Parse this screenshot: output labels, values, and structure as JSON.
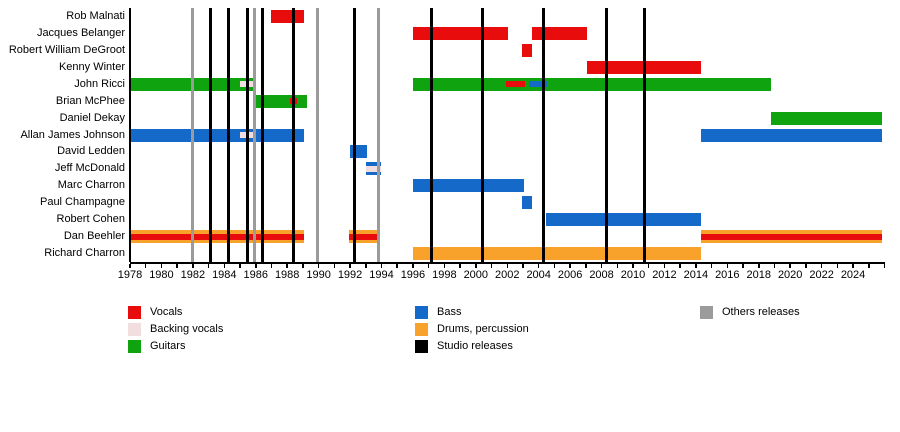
{
  "colors": {
    "vocals": "#e80c0c",
    "backing_vocals": "#f2dede",
    "guitars": "#10a310",
    "bass": "#1569c9",
    "drums": "#f9a22b",
    "studio_release_line": "#000000",
    "others_release_line": "#9b9b9b",
    "axis": "#000000",
    "background": "#ffffff"
  },
  "chart_data": {
    "type": "timeline",
    "x_axis": {
      "min": 1978,
      "max": 2026,
      "label_step": 2,
      "minor_step": 1,
      "year_labels": [
        "1978",
        "1980",
        "1982",
        "1984",
        "1986",
        "1988",
        "1990",
        "1992",
        "1994",
        "1996",
        "1998",
        "2000",
        "2002",
        "2004",
        "2006",
        "2008",
        "2010",
        "2012",
        "2014",
        "2016",
        "2018",
        "2020",
        "2022",
        "2024"
      ]
    },
    "present_end": 2025.85,
    "members": [
      {
        "name": "Rob Malnati",
        "bars": [
          {
            "role": "vocals",
            "start": 1987.0,
            "end": 1989.05
          }
        ],
        "overlays": []
      },
      {
        "name": "Jacques Belanger",
        "bars": [
          {
            "role": "vocals",
            "start": 1996.0,
            "end": 2002.05
          },
          {
            "role": "vocals",
            "start": 2003.55,
            "end": 2007.05
          }
        ],
        "overlays": []
      },
      {
        "name": "Robert William DeGroot",
        "bars": [
          {
            "role": "vocals",
            "start": 2002.95,
            "end": 2003.55
          }
        ],
        "overlays": []
      },
      {
        "name": "Kenny Winter",
        "bars": [
          {
            "role": "vocals",
            "start": 2007.05,
            "end": 2014.35
          }
        ],
        "overlays": []
      },
      {
        "name": "John Ricci",
        "bars": [
          {
            "role": "guitars",
            "start": 1978.0,
            "end": 1986.0
          },
          {
            "role": "guitars",
            "start": 1996.0,
            "end": 2018.8
          }
        ],
        "overlays": [
          {
            "role": "backing_vocals",
            "start": 1985.0,
            "end": 1985.95
          },
          {
            "role": "vocals",
            "start": 2001.95,
            "end": 2003.1
          },
          {
            "role": "bass",
            "start": 2003.4,
            "end": 2004.55
          }
        ]
      },
      {
        "name": "Brian McPhee",
        "bars": [
          {
            "role": "guitars",
            "start": 1986.0,
            "end": 1989.25
          }
        ],
        "overlays": [
          {
            "role": "vocals",
            "start": 1988.15,
            "end": 1988.6
          }
        ]
      },
      {
        "name": "Daniel Dekay",
        "bars": [
          {
            "role": "guitars",
            "start": 2018.8,
            "end": 2025.85
          }
        ],
        "overlays": []
      },
      {
        "name": "Allan James Johnson",
        "bars": [
          {
            "role": "bass",
            "start": 1978.0,
            "end": 1989.05
          },
          {
            "role": "bass",
            "start": 2014.35,
            "end": 2025.85
          }
        ],
        "overlays": [
          {
            "role": "backing_vocals",
            "start": 1985.0,
            "end": 1985.95
          }
        ]
      },
      {
        "name": "David Ledden",
        "bars": [
          {
            "role": "bass",
            "start": 1992.0,
            "end": 1993.05
          }
        ],
        "overlays": []
      },
      {
        "name": "Jeff McDonald",
        "bars": [
          {
            "role": "bass",
            "start": 1993.0,
            "end": 1993.95
          }
        ],
        "overlays": [
          {
            "role": "backing_vocals",
            "start": 1993.0,
            "end": 1993.95
          }
        ]
      },
      {
        "name": "Marc Charron",
        "bars": [
          {
            "role": "bass",
            "start": 1996.0,
            "end": 2003.05
          }
        ],
        "overlays": []
      },
      {
        "name": "Paul Champagne",
        "bars": [
          {
            "role": "bass",
            "start": 2002.95,
            "end": 2003.55
          }
        ],
        "overlays": []
      },
      {
        "name": "Robert Cohen",
        "bars": [
          {
            "role": "bass",
            "start": 2004.45,
            "end": 2014.35
          }
        ],
        "overlays": []
      },
      {
        "name": "Dan Beehler",
        "bars": [
          {
            "role": "drums",
            "start": 1978.0,
            "end": 1989.05
          },
          {
            "role": "drums",
            "start": 1991.95,
            "end": 1993.9
          },
          {
            "role": "drums",
            "start": 2014.35,
            "end": 2025.85
          }
        ],
        "overlays": [
          {
            "role": "vocals",
            "start": 1978.0,
            "end": 1989.05
          },
          {
            "role": "vocals",
            "start": 1991.95,
            "end": 1993.9
          },
          {
            "role": "vocals",
            "start": 2014.35,
            "end": 2025.85
          }
        ]
      },
      {
        "name": "Richard Charron",
        "bars": [
          {
            "role": "drums",
            "start": 1996.0,
            "end": 2014.35
          }
        ],
        "overlays": []
      }
    ],
    "releases": {
      "studio_years": [
        1983.1,
        1984.25,
        1985.5,
        1986.45,
        1988.4,
        1992.3,
        1997.2,
        2000.45,
        2004.3,
        2008.3,
        2010.75
      ],
      "other_years": [
        1981.95,
        1985.9,
        1989.9,
        1993.8
      ]
    }
  },
  "legend": {
    "columns": [
      {
        "items": [
          {
            "swatch": "vocals",
            "label": "Vocals"
          },
          {
            "swatch": "backing_vocals",
            "label": "Backing vocals"
          },
          {
            "swatch": "guitars",
            "label": "Guitars"
          }
        ]
      },
      {
        "items": [
          {
            "swatch": "bass",
            "label": "Bass"
          },
          {
            "swatch": "drums",
            "label": "Drums, percussion"
          },
          {
            "swatch": "studio_release_line",
            "label": "Studio releases"
          }
        ]
      },
      {
        "items": [
          {
            "swatch": "others_release_line",
            "label": "Others releases"
          }
        ]
      }
    ]
  }
}
